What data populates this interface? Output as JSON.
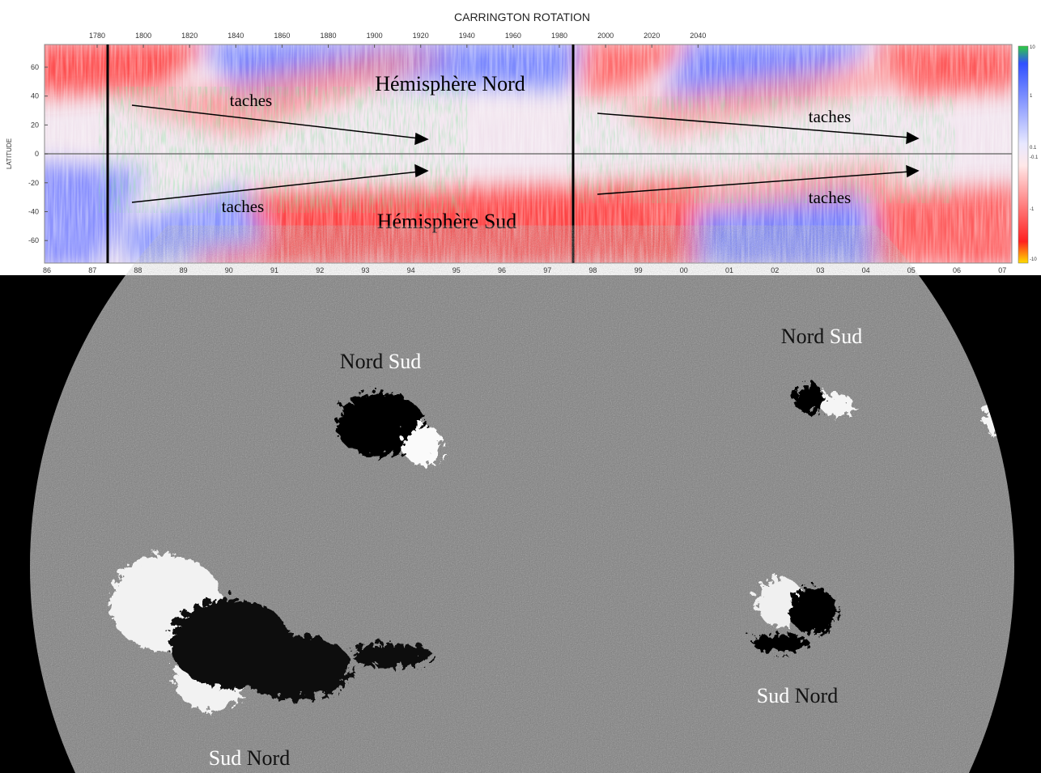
{
  "diagram": {
    "title": "CARRINGTON ROTATION",
    "rotation_labels": [
      "1780",
      "1800",
      "1820",
      "1840",
      "1860",
      "1880",
      "1900",
      "1920",
      "1940",
      "1960",
      "1980",
      "2000",
      "2020",
      "2040"
    ],
    "latitude_title": "LATITUDE",
    "latitude_labels": [
      "60",
      "40",
      "20",
      "0",
      "-20",
      "-40",
      "-60"
    ],
    "year_labels": [
      "86",
      "87",
      "88",
      "89",
      "90",
      "91",
      "92",
      "93",
      "94",
      "95",
      "96",
      "97",
      "98",
      "99",
      "00",
      "01",
      "02",
      "03",
      "04",
      "05",
      "06",
      "07"
    ],
    "colorbar_labels": [
      "10",
      "1",
      "0.1",
      "-0.1",
      "-1",
      "-10"
    ],
    "annotations": {
      "north": "Hémisphère Nord",
      "south": "Hémisphère Sud",
      "spots": [
        "taches",
        "taches",
        "taches",
        "taches"
      ]
    }
  },
  "magnetogram": {
    "regions": [
      [
        "Nord",
        "Sud"
      ],
      [
        "Nord",
        "Sud"
      ],
      [
        "Sud",
        "Nord"
      ],
      [
        "Sud",
        "Nord"
      ]
    ]
  }
}
